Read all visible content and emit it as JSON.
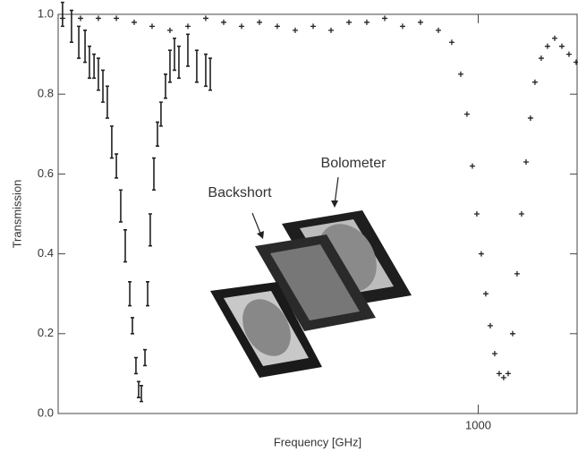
{
  "chart_data": {
    "type": "scatter",
    "x_label": "Frequency [GHz]",
    "y_label": "Transmission",
    "x_scale": "log",
    "xlim": [
      105,
      1700
    ],
    "xticks": [
      1000
    ],
    "ylim": [
      0,
      1
    ],
    "yticks": [
      {
        "value": 0,
        "label": "0.0"
      },
      0.2,
      0.4,
      0.6,
      0.8,
      {
        "value": 1,
        "label": "1.0"
      }
    ],
    "annotations": [
      "Bolometer",
      "Backshort"
    ],
    "series": [
      {
        "color": "#222222",
        "x": [
          107.5,
          112.8,
          117.3,
          121.3,
          124.2,
          127.3,
          130.3,
          133.5,
          136.7,
          140.0,
          143.5,
          146.9,
          150.5,
          154.2,
          156.4,
          159.4,
          161.7,
          164.1,
          167.3,
          169.7,
          172.1,
          175.5,
          178.9,
          182.3,
          186.8,
          191.3,
          196.0,
          200.7,
          210.6,
          220.9,
          231.8,
          237.5
        ],
        "values": [
          1.0,
          0.97,
          0.93,
          0.92,
          0.88,
          0.87,
          0.85,
          0.82,
          0.78,
          0.68,
          0.62,
          0.52,
          0.42,
          0.3,
          0.22,
          0.12,
          0.06,
          0.05,
          0.14,
          0.3,
          0.46,
          0.6,
          0.7,
          0.75,
          0.82,
          0.87,
          0.9,
          0.88,
          0.91,
          0.87,
          0.86,
          0.85
        ],
        "errors": [
          0.03,
          0.04,
          0.04,
          0.04,
          0.04,
          0.03,
          0.04,
          0.04,
          0.04,
          0.04,
          0.03,
          0.04,
          0.04,
          0.03,
          0.02,
          0.02,
          0.02,
          0.02,
          0.02,
          0.03,
          0.04,
          0.04,
          0.03,
          0.03,
          0.03,
          0.04,
          0.04,
          0.04,
          0.04,
          0.04,
          0.04,
          0.04
        ]
      },
      {
        "color": "#222222",
        "x": [
          107.5,
          118.4,
          130.3,
          143.5,
          157.9,
          173.8,
          191.3,
          210.6,
          231.8,
          255.2,
          280.9,
          309.2,
          340.3,
          374.6,
          412.5,
          454.0,
          499.8,
          550.0,
          605.5,
          666.5,
          733.6,
          807.6,
          867.7,
          910.5,
          941.6,
          969.2,
          992.7,
          1016.7,
          1041.5,
          1066.8,
          1092.6,
          1119.2,
          1146.3,
          1174.3,
          1202.8,
          1232.0,
          1261.9,
          1292.8,
          1323.9,
          1356.0,
          1402.4,
          1450.3,
          1507.3,
          1566.6,
          1627.6,
          1691.1
        ],
        "values": [
          0.99,
          0.99,
          0.99,
          0.99,
          0.98,
          0.97,
          0.96,
          0.97,
          0.99,
          0.98,
          0.97,
          0.98,
          0.97,
          0.96,
          0.97,
          0.96,
          0.98,
          0.98,
          0.99,
          0.97,
          0.98,
          0.96,
          0.93,
          0.85,
          0.75,
          0.62,
          0.5,
          0.4,
          0.3,
          0.22,
          0.15,
          0.1,
          0.09,
          0.1,
          0.2,
          0.35,
          0.5,
          0.63,
          0.74,
          0.83,
          0.89,
          0.92,
          0.94,
          0.92,
          0.9,
          0.88
        ]
      }
    ]
  }
}
